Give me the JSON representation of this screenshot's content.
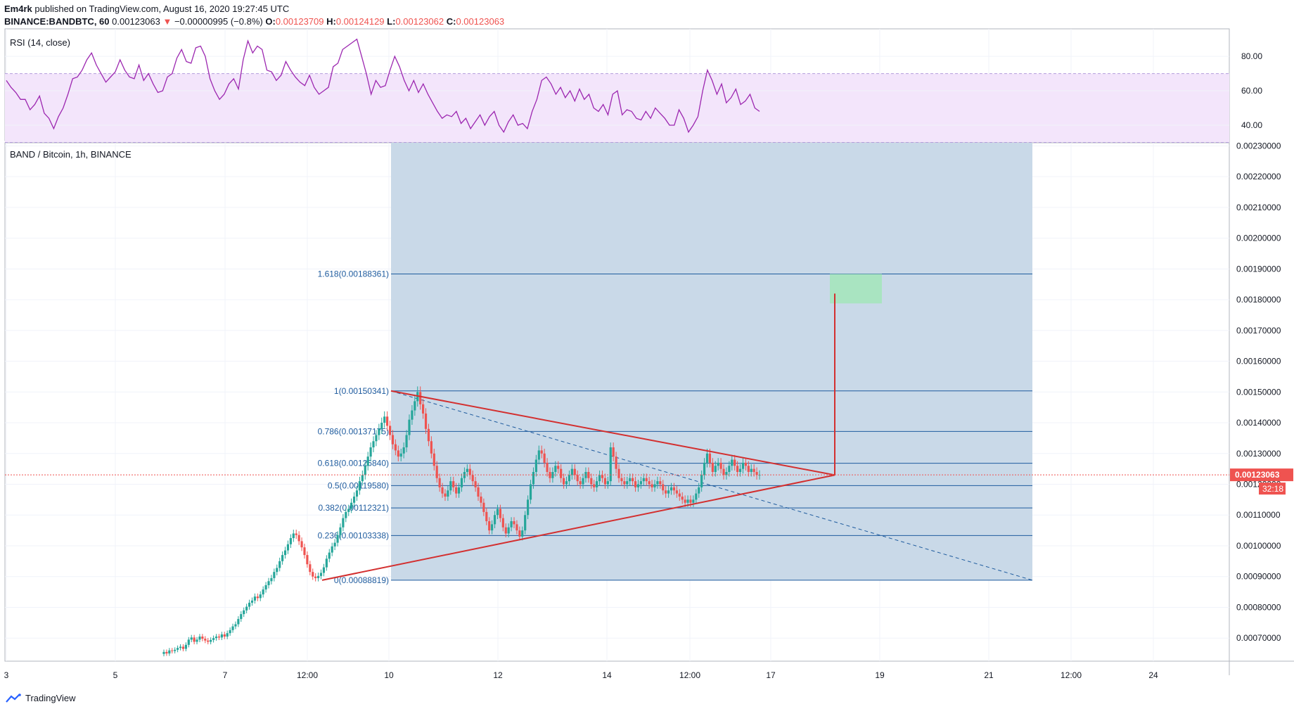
{
  "header": {
    "author": "Em4rk",
    "published_text": "published on TradingView.com, August 16, 2020 19:27:45 UTC",
    "symbol_line": "BINANCE:BANDBTC, 60",
    "last_price": "0.00123063",
    "change": "−0.00000995 (−0.8%)",
    "o_label": "O:",
    "o_value": "0.00123709",
    "h_label": "H:",
    "h_value": "0.00124129",
    "l_label": "L:",
    "l_value": "0.00123062",
    "c_label": "C:",
    "c_value": "0.00123063"
  },
  "footer": {
    "brand": "TradingView"
  },
  "colors": {
    "up": "#26a69a",
    "down": "#ef5350",
    "rsi_line": "#9c27b0",
    "rsi_band": "#f3e5fb",
    "fib_zone": "#c9d9e8",
    "fib_line": "#1e5b9e",
    "triangle": "#d32f2f",
    "target_box": "#a5e4bd",
    "price_label_bg": "#ef5350"
  },
  "chart_data": [
    {
      "type": "line",
      "title": "RSI (14, close)",
      "y_ticks": [
        "80.00",
        "60.00",
        "40.00"
      ],
      "ylim": [
        31,
        96
      ],
      "band": [
        30,
        70
      ],
      "values": [
        66,
        62,
        59,
        55,
        55,
        49,
        52,
        57,
        47,
        44,
        38,
        45,
        50,
        58,
        67,
        68,
        72,
        78,
        82,
        75,
        70,
        65,
        68,
        71,
        78,
        72,
        68,
        67,
        75,
        66,
        70,
        64,
        59,
        60,
        68,
        70,
        79,
        84,
        77,
        76,
        85,
        86,
        80,
        67,
        60,
        55,
        58,
        64,
        67,
        61,
        78,
        89,
        82,
        86,
        84,
        72,
        71,
        66,
        69,
        77,
        72,
        68,
        65,
        63,
        69,
        62,
        58,
        60,
        62,
        74,
        76,
        84,
        86,
        88,
        90,
        80,
        70,
        58,
        66,
        62,
        63,
        72,
        80,
        74,
        66,
        60,
        66,
        59,
        64,
        58,
        53,
        48,
        44,
        46,
        45,
        48,
        41,
        44,
        38,
        42,
        46,
        40,
        45,
        48,
        40,
        36,
        42,
        46,
        40,
        41,
        38,
        48,
        55,
        66,
        68,
        64,
        58,
        62,
        56,
        60,
        54,
        61,
        55,
        58,
        50,
        48,
        52,
        46,
        58,
        60,
        46,
        49,
        48,
        44,
        43,
        48,
        44,
        50,
        47,
        44,
        40,
        40,
        49,
        44,
        36,
        40,
        45,
        60,
        72,
        66,
        58,
        64,
        53,
        56,
        61,
        52,
        54,
        58,
        50,
        48
      ],
      "x_ticks": [
        "3",
        "5",
        "7",
        "12:00",
        "10",
        "12",
        "14",
        "12:00",
        "17",
        "19",
        "21",
        "12:00",
        "24"
      ]
    },
    {
      "type": "candlestick",
      "title": "BAND / Bitcoin, 1h, BINANCE",
      "y_ticks": [
        "0.00230000",
        "0.00220000",
        "0.00210000",
        "0.00200000",
        "0.00190000",
        "0.00180000",
        "0.00170000",
        "0.00160000",
        "0.00150000",
        "0.00140000",
        "0.00130000",
        "0.00120000",
        "0.00110000",
        "0.00100000",
        "0.00090000",
        "0.00080000",
        "0.00070000"
      ],
      "ylim": [
        0.000625,
        0.00231
      ],
      "closes": [
        0.000655,
        0.00065,
        0.00066,
        0.000658,
        0.000662,
        0.000668,
        0.000672,
        0.000665,
        0.000678,
        0.000695,
        0.000702,
        0.000688,
        0.000695,
        0.000705,
        0.000698,
        0.000692,
        0.000688,
        0.000694,
        0.0007,
        0.000705,
        0.000702,
        0.000712,
        0.000705,
        0.000716,
        0.000726,
        0.000738,
        0.000745,
        0.000762,
        0.000778,
        0.00079,
        0.000802,
        0.000815,
        0.000822,
        0.000835,
        0.00083,
        0.000842,
        0.000858,
        0.000872,
        0.000885,
        0.000895,
        0.000915,
        0.000928,
        0.00095,
        0.00097,
        0.000985,
        0.001005,
        0.001025,
        0.00104,
        0.001035,
        0.001015,
        0.000995,
        0.00097,
        0.00094,
        0.000915,
        0.0009,
        0.000895,
        0.000902,
        0.000912,
        0.00093,
        0.000958,
        0.000978,
        0.000998,
        0.00101,
        0.001035,
        0.00106,
        0.00109,
        0.00111,
        0.00112,
        0.00114,
        0.00116,
        0.00118,
        0.00121,
        0.00123,
        0.00126,
        0.00129,
        0.00132,
        0.00134,
        0.00136,
        0.00138,
        0.0014,
        0.00142,
        0.00139,
        0.00136,
        0.00133,
        0.00131,
        0.00129,
        0.0013,
        0.00132,
        0.00136,
        0.00141,
        0.00144,
        0.00147,
        0.0015,
        0.00146,
        0.00143,
        0.00138,
        0.00134,
        0.0013,
        0.00126,
        0.00122,
        0.00119,
        0.00117,
        0.00116,
        0.00118,
        0.00121,
        0.00119,
        0.00117,
        0.00119,
        0.00122,
        0.00124,
        0.00125,
        0.00123,
        0.00121,
        0.00119,
        0.00116,
        0.00114,
        0.00111,
        0.00108,
        0.00105,
        0.00107,
        0.0011,
        0.00112,
        0.00109,
        0.00106,
        0.00104,
        0.00106,
        0.00108,
        0.00107,
        0.00105,
        0.00103,
        0.00105,
        0.0011,
        0.00115,
        0.0012,
        0.00124,
        0.00128,
        0.00131,
        0.0013,
        0.00127,
        0.00124,
        0.00122,
        0.00124,
        0.00126,
        0.00125,
        0.00122,
        0.0012,
        0.00121,
        0.00123,
        0.00125,
        0.00123,
        0.00121,
        0.0012,
        0.00122,
        0.00124,
        0.00122,
        0.0012,
        0.00119,
        0.00121,
        0.00123,
        0.00122,
        0.0012,
        0.00121,
        0.00132,
        0.00129,
        0.00125,
        0.00122,
        0.00121,
        0.0012,
        0.00121,
        0.00122,
        0.00121,
        0.00119,
        0.0012,
        0.00121,
        0.00122,
        0.00121,
        0.0012,
        0.00119,
        0.0012,
        0.00121,
        0.0012,
        0.00118,
        0.00117,
        0.00118,
        0.00119,
        0.00118,
        0.00117,
        0.00116,
        0.00115,
        0.00114,
        0.00115,
        0.00114,
        0.00115,
        0.00117,
        0.00119,
        0.00123,
        0.00127,
        0.0013,
        0.00127,
        0.00124,
        0.00126,
        0.00127,
        0.00125,
        0.00123,
        0.00124,
        0.00126,
        0.00128,
        0.00126,
        0.00124,
        0.00125,
        0.00127,
        0.00126,
        0.00124,
        0.00125,
        0.00124,
        0.00123,
        0.00123063
      ],
      "current_price": "0.00123063",
      "countdown": "32:18",
      "x_ticks": [
        "3",
        "5",
        "7",
        "12:00",
        "10",
        "12",
        "14",
        "12:00",
        "17",
        "19",
        "21",
        "12:00",
        "24"
      ],
      "fib_levels": [
        {
          "label": "1.618(0.00188361)",
          "value": 0.00188361
        },
        {
          "label": "1(0.00150341)",
          "value": 0.00150341
        },
        {
          "label": "0.786(0.00137175)",
          "value": 0.00137175
        },
        {
          "label": "0.618(0.00126840)",
          "value": 0.0012684
        },
        {
          "label": "0.5(0.00119580)",
          "value": 0.0011958
        },
        {
          "label": "0.382(0.00112321)",
          "value": 0.00112321
        },
        {
          "label": "0.236(0.00103338)",
          "value": 0.00103338
        },
        {
          "label": "0(0.00088819)",
          "value": 0.00088819
        }
      ],
      "fib_zone": {
        "from_x": "10",
        "to_x": "21",
        "price_from": 0.00088819,
        "price_to": 0.00231
      },
      "triangle": {
        "upper": [
          0.00150341,
          0.00123
        ],
        "lower": [
          0.00088819,
          0.00123
        ],
        "apex_price": 0.00123,
        "target": 0.00182
      },
      "target_box": {
        "price_from": 0.0017879,
        "price_to": 0.00188361
      }
    }
  ]
}
